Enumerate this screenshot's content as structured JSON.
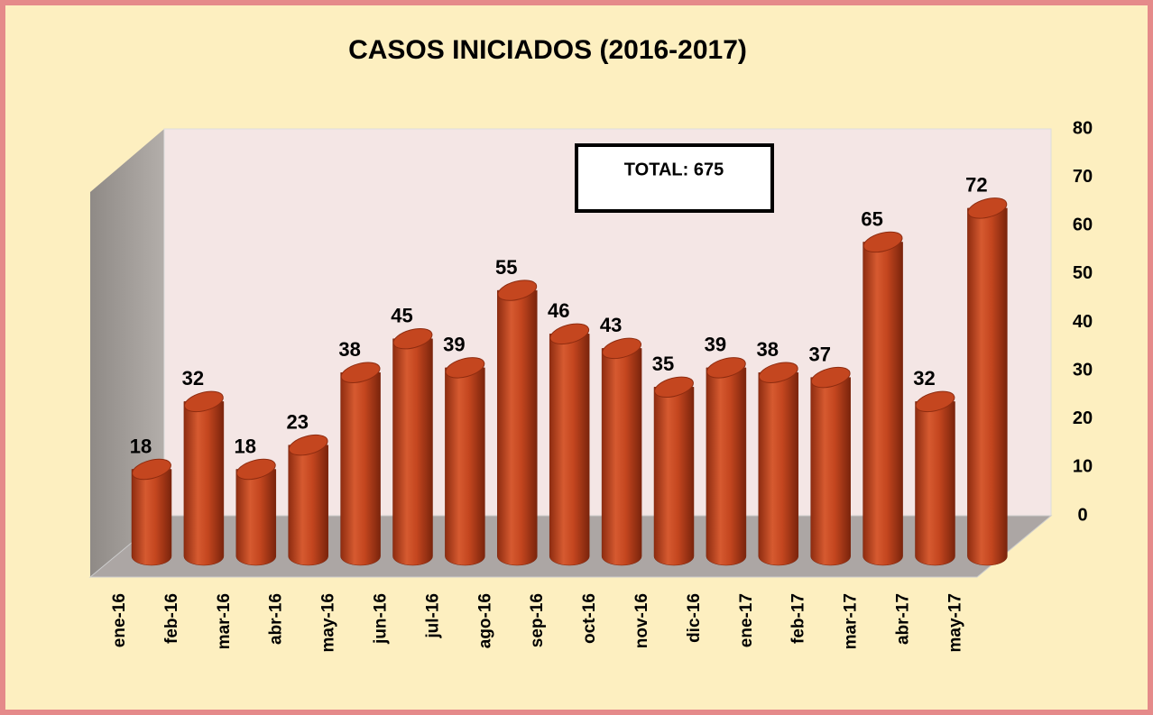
{
  "chart_data": {
    "type": "bar",
    "title": "CASOS INICIADOS  (2016-2017)",
    "annotation": "TOTAL: 675",
    "categories": [
      "ene-16",
      "feb-16",
      "mar-16",
      "abr-16",
      "may-16",
      "jun-16",
      "jul-16",
      "ago-16",
      "sep-16",
      "oct-16",
      "nov-16",
      "dic-16",
      "ene-17",
      "feb-17",
      "mar-17",
      "abr-17",
      "may-17"
    ],
    "values": [
      18,
      32,
      18,
      23,
      38,
      45,
      39,
      55,
      46,
      43,
      35,
      39,
      38,
      37,
      65,
      32,
      72
    ],
    "color": "#c4461f",
    "ylim": [
      0,
      80
    ],
    "yticks": [
      0,
      10,
      20,
      30,
      40,
      50,
      60,
      70,
      80
    ],
    "grid": false
  }
}
